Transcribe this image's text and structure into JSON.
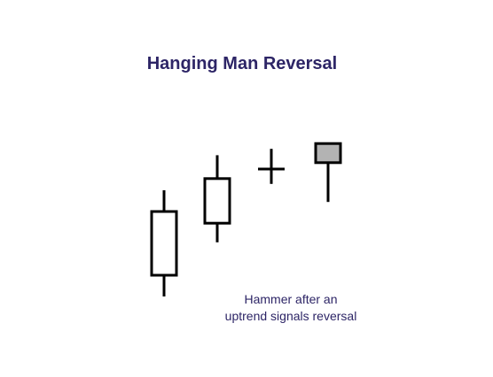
{
  "title": "Hanging Man Reversal",
  "caption": {
    "line1": "Hammer after an",
    "line2": "uptrend signals reversal"
  },
  "colors": {
    "title": "#2d2566",
    "caption": "#2d2566",
    "stroke": "#000000",
    "body_fill": "#ffffff",
    "highlight_fill": "#b3b3b3"
  },
  "candles": [
    {
      "kind": "candle",
      "open": 1.0,
      "close": 4.0,
      "high": 5.0,
      "low": 0.0,
      "highlight": false
    },
    {
      "kind": "candle",
      "open": 3.45,
      "close": 5.55,
      "high": 6.65,
      "low": 2.55,
      "highlight": false
    },
    {
      "kind": "doji",
      "open": 6.0,
      "close": 6.0,
      "high": 6.95,
      "low": 5.3,
      "highlight": false
    },
    {
      "kind": "hanging-man",
      "open": 6.3,
      "close": 7.2,
      "high": 7.2,
      "low": 4.45,
      "highlight": true
    }
  ]
}
